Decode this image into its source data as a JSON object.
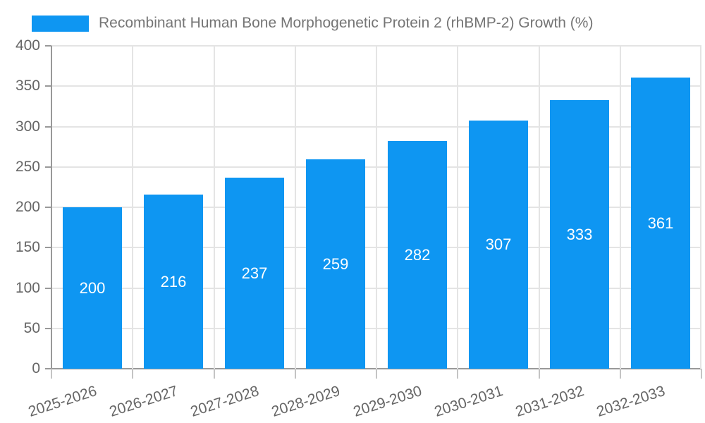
{
  "legend": {
    "label": "Recombinant Human Bone Morphogenetic Protein 2 (rhBMP-2) Growth (%)"
  },
  "colors": {
    "bar": "#0e96f2",
    "grid": "#e4e4e4",
    "axis": "#999999",
    "x_tick": "#c4c4c4",
    "axis_label": "#666666",
    "legend_text": "#757575",
    "value_label": "#ffffff",
    "background": "#ffffff"
  },
  "chart_data": {
    "type": "bar",
    "title": "",
    "xlabel": "",
    "ylabel": "",
    "categories": [
      "2025-2026",
      "2026-2027",
      "2027-2028",
      "2028-2029",
      "2029-2030",
      "2030-2031",
      "2031-2032",
      "2032-2033"
    ],
    "series": [
      {
        "name": "Recombinant Human Bone Morphogenetic Protein 2 (rhBMP-2) Growth (%)",
        "values": [
          200,
          216,
          237,
          259,
          282,
          307,
          333,
          361
        ],
        "color": "#0e96f2"
      }
    ],
    "ylim": [
      0,
      400
    ],
    "ytick_step": 50,
    "ytick_labels": [
      "0",
      "50",
      "100",
      "150",
      "200",
      "250",
      "300",
      "350",
      "400"
    ],
    "grid": true,
    "legend_position": "top-left",
    "value_labels": "inside-center"
  }
}
